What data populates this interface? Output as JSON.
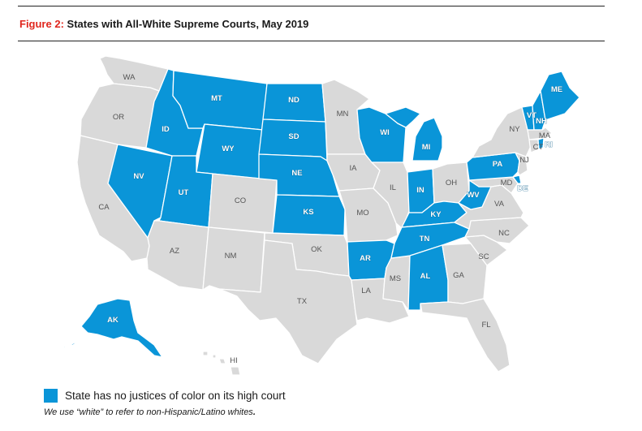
{
  "header": {
    "figure_label": "Figure 2:",
    "title": "States with All-White Supreme Courts, May 2019"
  },
  "colors": {
    "highlight": "#0a95d8",
    "other": "#d9d9d9",
    "border": "#ffffff",
    "label_dark": "#555555",
    "label_light": "#ffffff"
  },
  "states": [
    {
      "abbr": "WA",
      "highlighted": false
    },
    {
      "abbr": "OR",
      "highlighted": false
    },
    {
      "abbr": "CA",
      "highlighted": false
    },
    {
      "abbr": "NV",
      "highlighted": true
    },
    {
      "abbr": "ID",
      "highlighted": true
    },
    {
      "abbr": "MT",
      "highlighted": true
    },
    {
      "abbr": "WY",
      "highlighted": true
    },
    {
      "abbr": "UT",
      "highlighted": true
    },
    {
      "abbr": "AZ",
      "highlighted": false
    },
    {
      "abbr": "CO",
      "highlighted": false
    },
    {
      "abbr": "NM",
      "highlighted": false
    },
    {
      "abbr": "ND",
      "highlighted": true
    },
    {
      "abbr": "SD",
      "highlighted": true
    },
    {
      "abbr": "NE",
      "highlighted": true
    },
    {
      "abbr": "KS",
      "highlighted": true
    },
    {
      "abbr": "OK",
      "highlighted": false
    },
    {
      "abbr": "TX",
      "highlighted": false
    },
    {
      "abbr": "MN",
      "highlighted": false
    },
    {
      "abbr": "IA",
      "highlighted": false
    },
    {
      "abbr": "MO",
      "highlighted": false
    },
    {
      "abbr": "AR",
      "highlighted": true
    },
    {
      "abbr": "LA",
      "highlighted": false
    },
    {
      "abbr": "WI",
      "highlighted": true
    },
    {
      "abbr": "IL",
      "highlighted": false
    },
    {
      "abbr": "MS",
      "highlighted": false
    },
    {
      "abbr": "MI",
      "highlighted": true
    },
    {
      "abbr": "IN",
      "highlighted": true
    },
    {
      "abbr": "OH",
      "highlighted": false
    },
    {
      "abbr": "KY",
      "highlighted": true
    },
    {
      "abbr": "TN",
      "highlighted": true
    },
    {
      "abbr": "AL",
      "highlighted": true
    },
    {
      "abbr": "GA",
      "highlighted": false
    },
    {
      "abbr": "FL",
      "highlighted": false
    },
    {
      "abbr": "SC",
      "highlighted": false
    },
    {
      "abbr": "NC",
      "highlighted": false
    },
    {
      "abbr": "VA",
      "highlighted": false
    },
    {
      "abbr": "WV",
      "highlighted": true
    },
    {
      "abbr": "PA",
      "highlighted": true
    },
    {
      "abbr": "NY",
      "highlighted": false
    },
    {
      "abbr": "VT",
      "highlighted": true
    },
    {
      "abbr": "NH",
      "highlighted": true
    },
    {
      "abbr": "ME",
      "highlighted": true
    },
    {
      "abbr": "MA",
      "highlighted": false
    },
    {
      "abbr": "RI",
      "highlighted": true
    },
    {
      "abbr": "CT",
      "highlighted": false
    },
    {
      "abbr": "NJ",
      "highlighted": false
    },
    {
      "abbr": "DE",
      "highlighted": true
    },
    {
      "abbr": "MD",
      "highlighted": false
    },
    {
      "abbr": "AK",
      "highlighted": true
    },
    {
      "abbr": "HI",
      "highlighted": false
    }
  ],
  "legend": {
    "label": "State has no justices of color on its high court"
  },
  "note": {
    "text_before": "We use “white” to refer to non-Hispanic/Latino whites",
    "text_end": "."
  }
}
